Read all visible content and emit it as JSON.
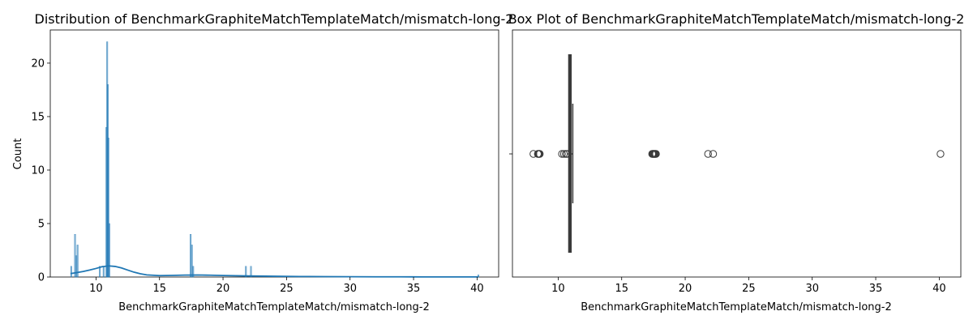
{
  "chart_data": [
    {
      "type": "histogram",
      "title": "Distribution of BenchmarkGraphiteMatchTemplateMatch/mismatch-long-2",
      "xlabel": "BenchmarkGraphiteMatchTemplateMatch/mismatch-long-2",
      "ylabel": "Count",
      "xlim": [
        6.4,
        41.7
      ],
      "ylim": [
        0,
        23.1
      ],
      "xticks": [
        10,
        15,
        20,
        25,
        30,
        35,
        40
      ],
      "yticks": [
        0,
        5,
        10,
        15,
        20
      ],
      "bar_color": "#1f77b4",
      "bins": [
        {
          "x": 8.05,
          "count": 1
        },
        {
          "x": 8.35,
          "count": 4
        },
        {
          "x": 8.45,
          "count": 2
        },
        {
          "x": 8.55,
          "count": 3
        },
        {
          "x": 10.3,
          "count": 1
        },
        {
          "x": 10.6,
          "count": 1
        },
        {
          "x": 10.82,
          "count": 14
        },
        {
          "x": 10.88,
          "count": 22
        },
        {
          "x": 10.93,
          "count": 18
        },
        {
          "x": 10.98,
          "count": 13
        },
        {
          "x": 11.05,
          "count": 5
        },
        {
          "x": 17.45,
          "count": 4
        },
        {
          "x": 17.55,
          "count": 3
        },
        {
          "x": 17.65,
          "count": 1
        },
        {
          "x": 21.8,
          "count": 1
        },
        {
          "x": 22.2,
          "count": 1
        },
        {
          "x": 40.1,
          "count": 0.2
        }
      ],
      "kde": {
        "x": [
          8,
          8.5,
          9,
          9.5,
          10,
          10.5,
          11,
          11.5,
          12,
          12.5,
          13,
          13.5,
          14,
          15,
          16,
          17,
          18,
          19,
          20,
          22,
          24,
          26,
          28,
          30,
          32,
          34,
          36,
          38,
          40.1
        ],
        "y": [
          0.32,
          0.42,
          0.52,
          0.65,
          0.8,
          0.97,
          1.04,
          0.99,
          0.85,
          0.65,
          0.45,
          0.3,
          0.2,
          0.13,
          0.15,
          0.18,
          0.19,
          0.17,
          0.14,
          0.1,
          0.07,
          0.05,
          0.04,
          0.03,
          0.02,
          0.02,
          0.01,
          0.01,
          0.01
        ]
      }
    },
    {
      "type": "boxplot",
      "title": "Box Plot of BenchmarkGraphiteMatchTemplateMatch/mismatch-long-2",
      "xlabel": "BenchmarkGraphiteMatchTemplateMatch/mismatch-long-2",
      "xlim": [
        6.4,
        41.7
      ],
      "xticks": [
        10,
        15,
        20,
        25,
        30,
        35,
        40
      ],
      "median": 10.9,
      "q1": 10.85,
      "q3": 11.0,
      "whisker_low": 10.75,
      "whisker_high": 11.15,
      "outliers": [
        8.05,
        8.4,
        8.45,
        8.5,
        8.55,
        10.3,
        10.45,
        10.6,
        10.7,
        17.4,
        17.45,
        17.5,
        17.55,
        17.6,
        17.65,
        17.7,
        21.8,
        22.2,
        40.1
      ]
    }
  ]
}
